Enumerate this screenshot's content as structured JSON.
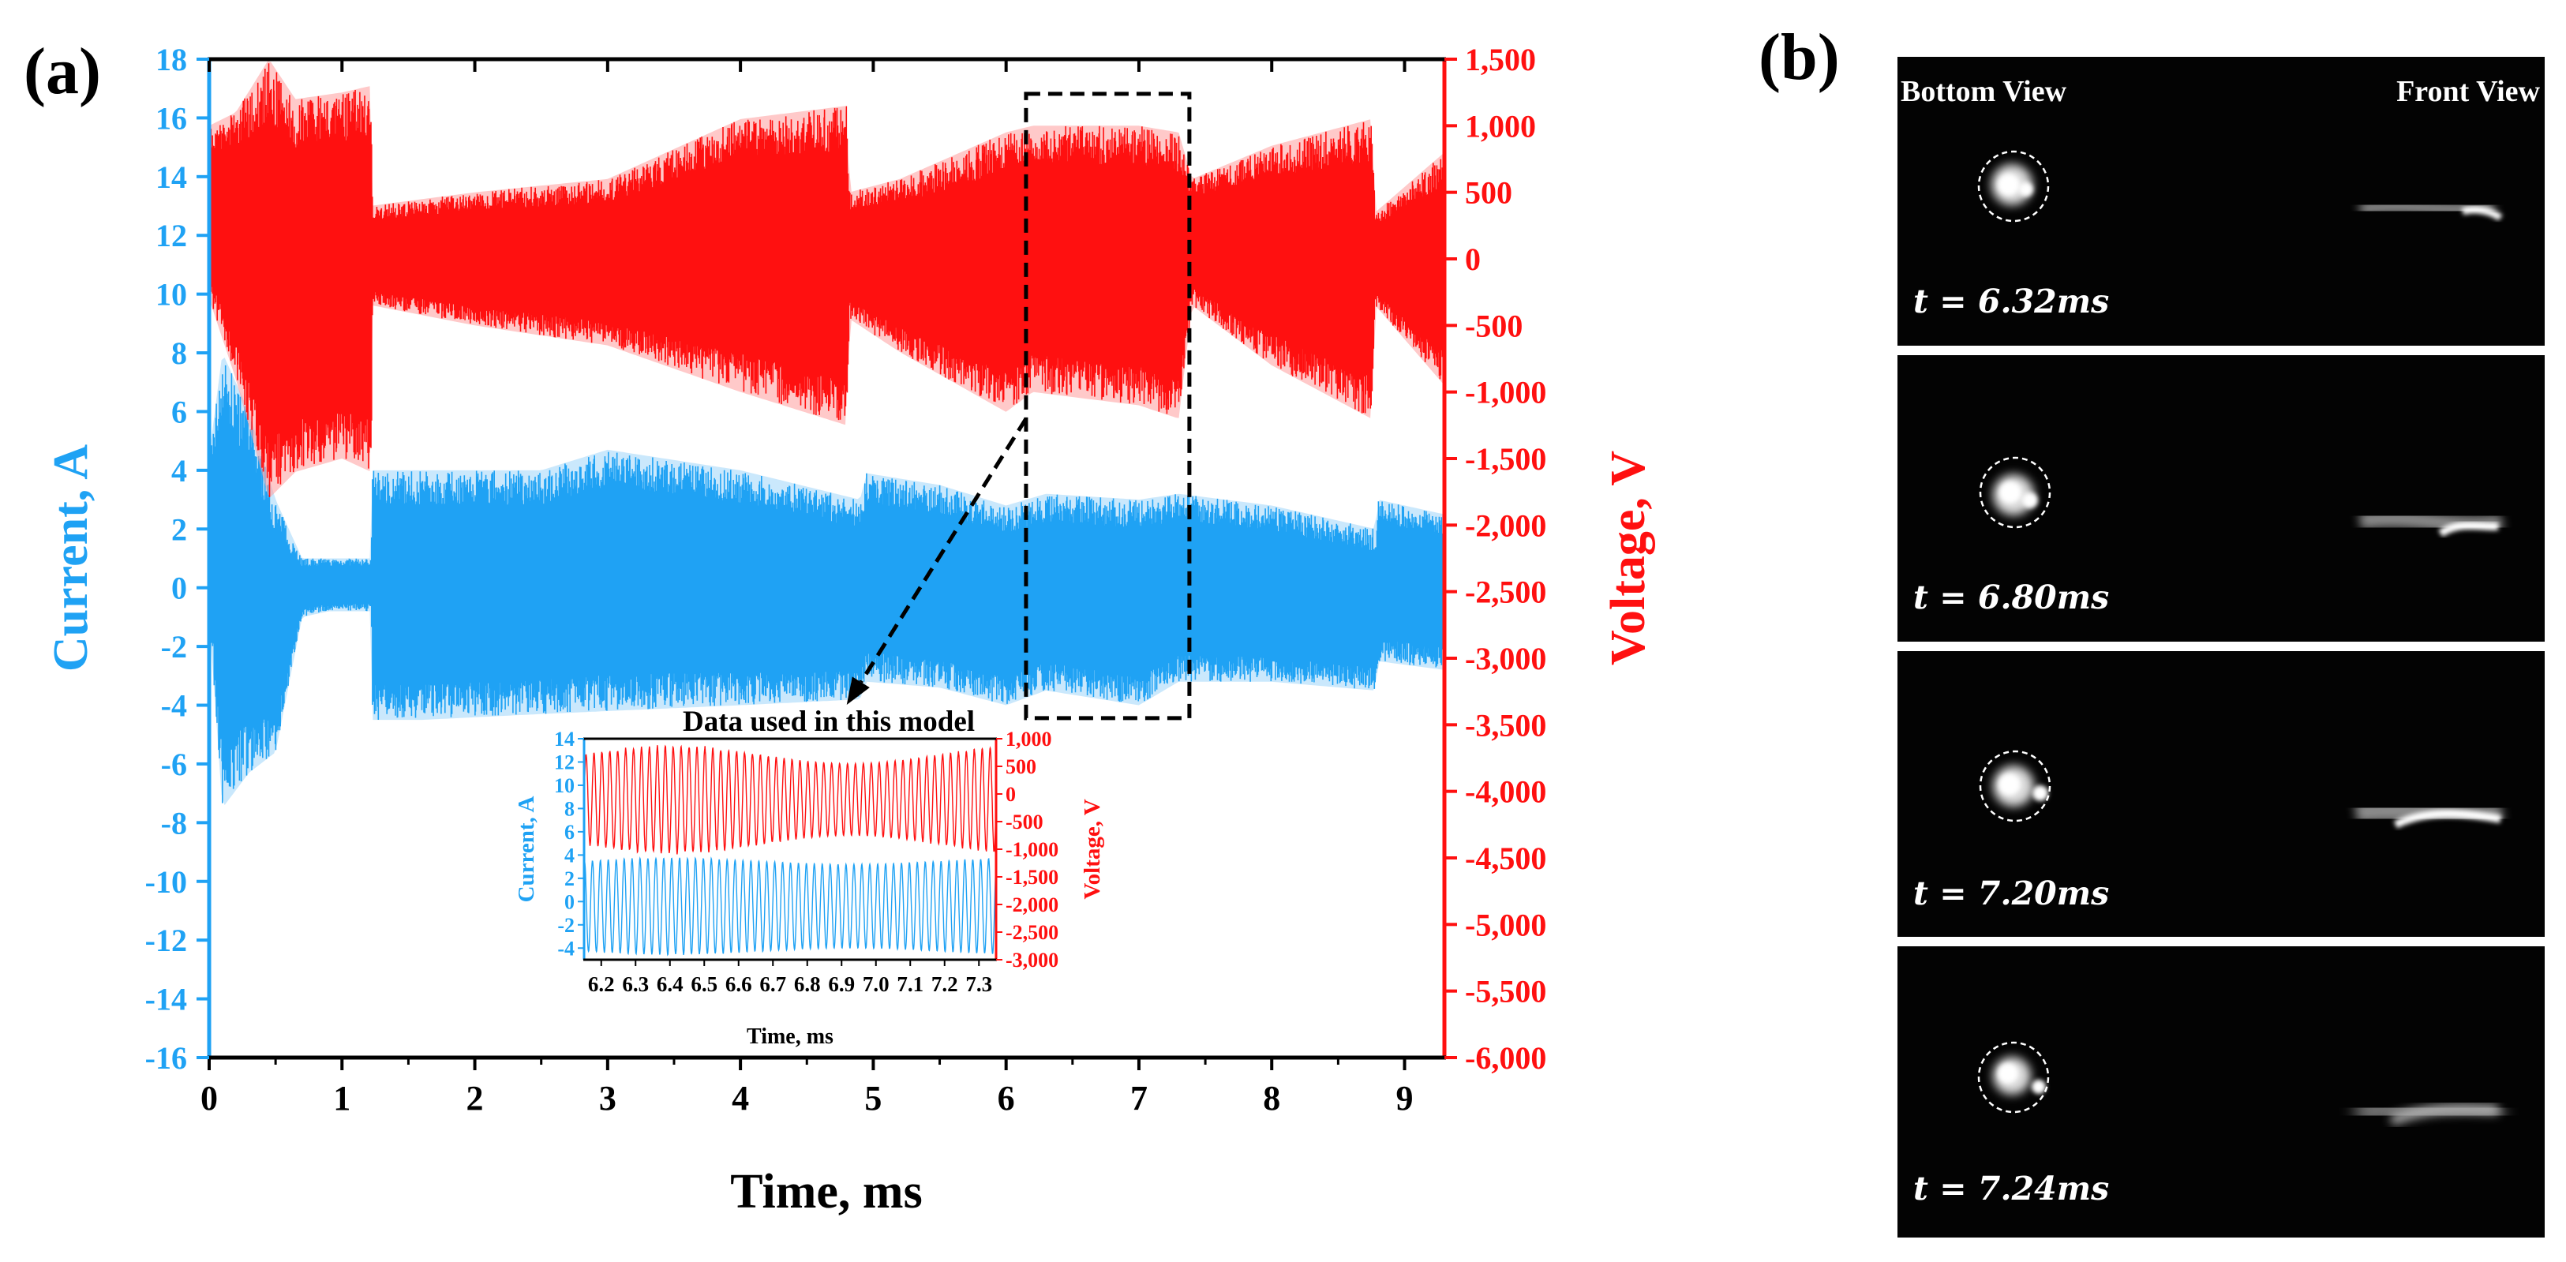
{
  "panel_labels": {
    "a": "(a)",
    "b": "(b)"
  },
  "colors": {
    "current": "#1fa2f4",
    "current_light": "#9fd6fa",
    "voltage": "#ff1010",
    "voltage_light": "#ff9c9c",
    "axis": "#000000",
    "camera_bg": "#030303"
  },
  "chart_data": [
    {
      "id": "main",
      "type": "line",
      "xlabel": "Time, ms",
      "ylabel_left": "Current, A",
      "ylabel_right": "Voltage, V",
      "xlim": [
        0,
        9.3
      ],
      "ylim_left": [
        -16,
        18
      ],
      "ylim_right": [
        -6000,
        1500
      ],
      "x_ticks": [
        0,
        1,
        2,
        3,
        4,
        5,
        6,
        7,
        8,
        9
      ],
      "x_tick_labels": [
        "0",
        "1",
        "2",
        "3",
        "4",
        "5",
        "6",
        "7",
        "8",
        "9"
      ],
      "y_left_ticks": [
        -16,
        -14,
        -12,
        -10,
        -8,
        -6,
        -4,
        -2,
        0,
        2,
        4,
        6,
        8,
        10,
        12,
        14,
        16,
        18
      ],
      "y_left_tick_labels": [
        "-16",
        "-14",
        "-12",
        "-10",
        "-8",
        "-6",
        "-4",
        "-2",
        "0",
        "2",
        "4",
        "6",
        "8",
        "10",
        "12",
        "14",
        "16",
        "18"
      ],
      "y_right_ticks": [
        -6000,
        -5500,
        -5000,
        -4500,
        -4000,
        -3500,
        -3000,
        -2500,
        -2000,
        -1500,
        -1000,
        -500,
        0,
        500,
        1000,
        1500
      ],
      "y_right_tick_labels": [
        "-6,000",
        "-5,500",
        "-5,000",
        "-4,500",
        "-4,000",
        "-3,500",
        "-3,000",
        "-2,500",
        "-2,000",
        "-1,500",
        "-1,000",
        "-500",
        "0",
        "500",
        "1,000",
        "1,500"
      ],
      "series": [
        {
          "name": "Current",
          "axis": "left",
          "envelope_x": [
            0,
            0.1,
            0.3,
            0.5,
            0.7,
            0.9,
            1.22,
            1.23,
            1.6,
            2.5,
            3.0,
            4.0,
            4.9,
            4.95,
            5.5,
            6.0,
            6.3,
            7.0,
            7.3,
            8.0,
            8.78,
            8.8,
            9.3
          ],
          "envelope_max": [
            4.5,
            8,
            6,
            3,
            1,
            1,
            1,
            4,
            4,
            4,
            4.7,
            4,
            3,
            3.9,
            3.5,
            2.8,
            3.2,
            3,
            3.2,
            2.8,
            2,
            3,
            2.5
          ],
          "envelope_min": [
            -1,
            -7.5,
            -6.3,
            -5.6,
            -1,
            -0.8,
            -0.8,
            -4.5,
            -4.5,
            -4.3,
            -4.2,
            -4,
            -3.8,
            -3.2,
            -3.4,
            -4,
            -3.5,
            -4,
            -3.2,
            -3.2,
            -3.5,
            -2.5,
            -2.8
          ]
        },
        {
          "name": "Voltage",
          "axis": "right",
          "envelope_x": [
            0,
            0.2,
            0.45,
            0.65,
            1.0,
            1.22,
            1.23,
            2.0,
            3.0,
            4.0,
            4.8,
            4.82,
            5.2,
            6.0,
            6.2,
            7.0,
            7.3,
            7.4,
            8.0,
            8.75,
            8.78,
            9.3
          ],
          "envelope_max": [
            1000,
            1100,
            1500,
            1200,
            1250,
            1300,
            400,
            500,
            600,
            1050,
            1150,
            500,
            600,
            950,
            1000,
            1000,
            950,
            600,
            850,
            1050,
            350,
            800
          ],
          "envelope_min": [
            -300,
            -900,
            -1800,
            -1600,
            -1500,
            -1600,
            -350,
            -500,
            -650,
            -1000,
            -1250,
            -450,
            -700,
            -1150,
            -1000,
            -1100,
            -1200,
            -350,
            -800,
            -1200,
            -350,
            -950
          ]
        }
      ],
      "annotations": [
        {
          "type": "rect",
          "x_range": [
            6.15,
            7.38
          ],
          "y_range_right": [
            -3450,
            1240
          ],
          "style": "dashed"
        },
        {
          "type": "arrow",
          "from": [
            6.15,
            -1200
          ],
          "to": [
            4.8,
            -3350
          ],
          "style": "dashed"
        }
      ]
    },
    {
      "id": "inset",
      "type": "line",
      "title": "Data used in this model",
      "xlabel": "Time, ms",
      "ylabel_left": "Current, A",
      "ylabel_right": "Voltage, V",
      "xlim": [
        6.15,
        7.35
      ],
      "ylim_left": [
        -5,
        14
      ],
      "ylim_right": [
        -3000,
        1000
      ],
      "x_ticks": [
        6.2,
        6.3,
        6.4,
        6.5,
        6.6,
        6.7,
        6.8,
        6.9,
        7.0,
        7.1,
        7.2,
        7.3
      ],
      "x_tick_labels": [
        "6.2",
        "6.3",
        "6.4",
        "6.5",
        "6.6",
        "6.7",
        "6.8",
        "6.9",
        "7.0",
        "7.1",
        "7.2",
        "7.3"
      ],
      "y_left_ticks": [
        -4,
        -2,
        0,
        2,
        4,
        6,
        8,
        10,
        12,
        14
      ],
      "y_left_tick_labels": [
        "-4",
        "-2",
        "0",
        "2",
        "4",
        "6",
        "8",
        "10",
        "12",
        "14"
      ],
      "y_right_ticks": [
        -3000,
        -2500,
        -2000,
        -1500,
        -1000,
        -500,
        0,
        500,
        1000
      ],
      "y_right_tick_labels": [
        "-3,000",
        "-2,500",
        "-2,000",
        "-1,500",
        "-1,000",
        "-500",
        "0",
        "500",
        "1,000"
      ],
      "series": [
        {
          "name": "Current",
          "axis": "left",
          "amp_range": [
            3.6,
            4.2
          ],
          "center": -0.4,
          "cycles": 52
        },
        {
          "name": "Voltage",
          "axis": "right",
          "amp_range": [
            650,
            1000
          ],
          "center": -100,
          "cycles": 52
        }
      ]
    }
  ],
  "camera": {
    "headers": {
      "bottom_view": "Bottom View",
      "front_view": "Front View"
    },
    "frames": [
      {
        "time_label": "t = 6.32ms"
      },
      {
        "time_label": "t = 6.80ms"
      },
      {
        "time_label": "t = 7.20ms"
      },
      {
        "time_label": "t = 7.24ms"
      }
    ]
  }
}
